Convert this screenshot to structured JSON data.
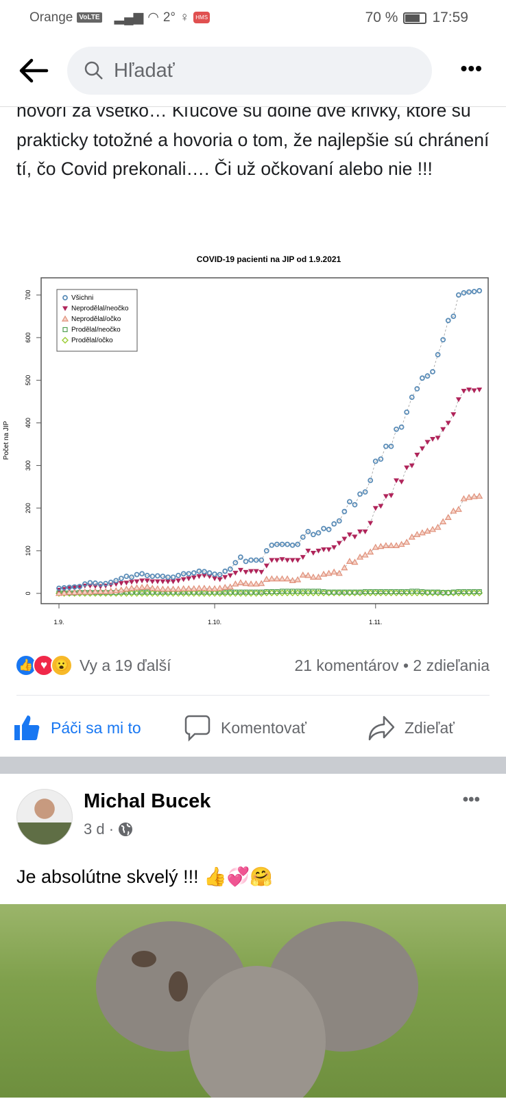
{
  "status": {
    "carrier": "Orange",
    "volte": "VoLTE",
    "temp": "2°",
    "hms": "HMS",
    "battery": "70 %",
    "time": "17:59"
  },
  "header": {
    "search_placeholder": "Hľadať"
  },
  "post1": {
    "text": "hovorí za všetko… Kľúčové sú dolné dve krivky, ktoré sú prakticky totožné a hovoria o tom, že najlepšie sú chránení tí, čo Covid prekonali…. Či už očkovaní alebo nie !!!",
    "reactions": "Vy a 19 ďalší",
    "stats": "21 komentárov • 2 zdieľania",
    "like": "Páči sa mi to",
    "comment": "Komentovať",
    "share": "Zdieľať"
  },
  "post2": {
    "author": "Michal Bucek",
    "time": "3 d ·",
    "text": "Je absolútne skvelý !!! 👍💞🤗"
  },
  "chart_data": {
    "type": "scatter",
    "title": "COVID-19 pacienti na JIP od 1.9.2021",
    "xlabel": "",
    "ylabel": "Počet na JIP",
    "ylim": [
      -30,
      730
    ],
    "yticks": [
      "0",
      "100",
      "200",
      "300",
      "400",
      "500",
      "600",
      "700"
    ],
    "xticks": [
      {
        "label": "1.9.",
        "day": 0
      },
      {
        "label": "1.10.",
        "day": 30
      },
      {
        "label": "1.11.",
        "day": 61
      }
    ],
    "legend_position": "top-left",
    "x_start": "1.9.2021",
    "series": [
      {
        "name": "Všichni",
        "marker": "circle",
        "color": "#5b8db8",
        "values": [
          12,
          13,
          14,
          15,
          16,
          22,
          25,
          24,
          22,
          23,
          26,
          30,
          35,
          40,
          38,
          44,
          46,
          42,
          40,
          41,
          40,
          38,
          38,
          42,
          46,
          46,
          48,
          52,
          51,
          48,
          45,
          44,
          52,
          57,
          72,
          85,
          75,
          78,
          78,
          78,
          100,
          113,
          115,
          115,
          115,
          113,
          115,
          132,
          145,
          138,
          142,
          152,
          150,
          163,
          170,
          192,
          215,
          208,
          233,
          238,
          265,
          310,
          315,
          345,
          345,
          385,
          390,
          425,
          460,
          480,
          505,
          510,
          520,
          560,
          595,
          640,
          650,
          700,
          705,
          707,
          708,
          710
        ]
      },
      {
        "name": "Neprodělal/neočko",
        "marker": "triangle-down",
        "color": "#b0245a",
        "values": [
          8,
          10,
          12,
          14,
          15,
          18,
          18,
          17,
          16,
          18,
          20,
          22,
          24,
          25,
          27,
          28,
          30,
          30,
          28,
          28,
          28,
          28,
          28,
          30,
          33,
          35,
          37,
          40,
          42,
          40,
          35,
          33,
          38,
          42,
          48,
          55,
          50,
          52,
          52,
          50,
          65,
          78,
          78,
          80,
          78,
          78,
          78,
          85,
          100,
          95,
          100,
          103,
          103,
          108,
          118,
          128,
          138,
          133,
          145,
          145,
          165,
          200,
          205,
          228,
          230,
          265,
          262,
          295,
          300,
          325,
          340,
          355,
          362,
          365,
          385,
          400,
          420,
          455,
          475,
          478,
          476,
          478
        ]
      },
      {
        "name": "Neprodělal/očko",
        "marker": "triangle-up",
        "color": "#e0907a",
        "values": [
          0,
          1,
          2,
          2,
          3,
          3,
          3,
          4,
          4,
          4,
          5,
          6,
          8,
          10,
          12,
          13,
          14,
          15,
          12,
          11,
          10,
          10,
          10,
          10,
          11,
          11,
          11,
          12,
          12,
          11,
          11,
          12,
          14,
          15,
          22,
          25,
          23,
          22,
          22,
          23,
          33,
          34,
          34,
          34,
          34,
          30,
          32,
          43,
          42,
          38,
          38,
          45,
          47,
          50,
          47,
          60,
          75,
          73,
          85,
          90,
          97,
          108,
          110,
          112,
          112,
          112,
          115,
          120,
          132,
          138,
          142,
          146,
          150,
          155,
          168,
          178,
          193,
          197,
          222,
          225,
          227,
          228
        ]
      },
      {
        "name": "Prodělal/neočko",
        "marker": "square",
        "color": "#4f9e4f",
        "values": [
          1,
          1,
          1,
          1,
          2,
          2,
          2,
          2,
          2,
          2,
          2,
          2,
          3,
          3,
          3,
          3,
          3,
          3,
          3,
          3,
          3,
          3,
          3,
          3,
          3,
          3,
          3,
          3,
          3,
          3,
          3,
          3,
          3,
          3,
          3,
          3,
          3,
          3,
          3,
          3,
          4,
          4,
          4,
          5,
          5,
          5,
          5,
          5,
          5,
          5,
          5,
          4,
          3,
          3,
          3,
          3,
          3,
          3,
          3,
          4,
          4,
          4,
          4,
          4,
          4,
          4,
          4,
          4,
          5,
          5,
          4,
          3,
          3,
          3,
          2,
          2,
          3,
          4,
          4,
          4,
          4,
          4
        ]
      },
      {
        "name": "Prodělal/očko",
        "marker": "diamond",
        "color": "#9acd32",
        "values": [
          0,
          0,
          0,
          0,
          0,
          0,
          0,
          0,
          0,
          0,
          0,
          0,
          0,
          0,
          0,
          0,
          0,
          0,
          0,
          0,
          0,
          0,
          0,
          0,
          0,
          0,
          0,
          0,
          0,
          0,
          0,
          0,
          0,
          0,
          0,
          0,
          0,
          0,
          0,
          0,
          1,
          1,
          1,
          1,
          1,
          1,
          1,
          1,
          1,
          1,
          1,
          1,
          1,
          1,
          1,
          1,
          1,
          1,
          1,
          1,
          1,
          1,
          1,
          1,
          1,
          1,
          1,
          1,
          1,
          1,
          1,
          1,
          1,
          1,
          1,
          1,
          1,
          1,
          1,
          1,
          1,
          1
        ]
      }
    ]
  }
}
